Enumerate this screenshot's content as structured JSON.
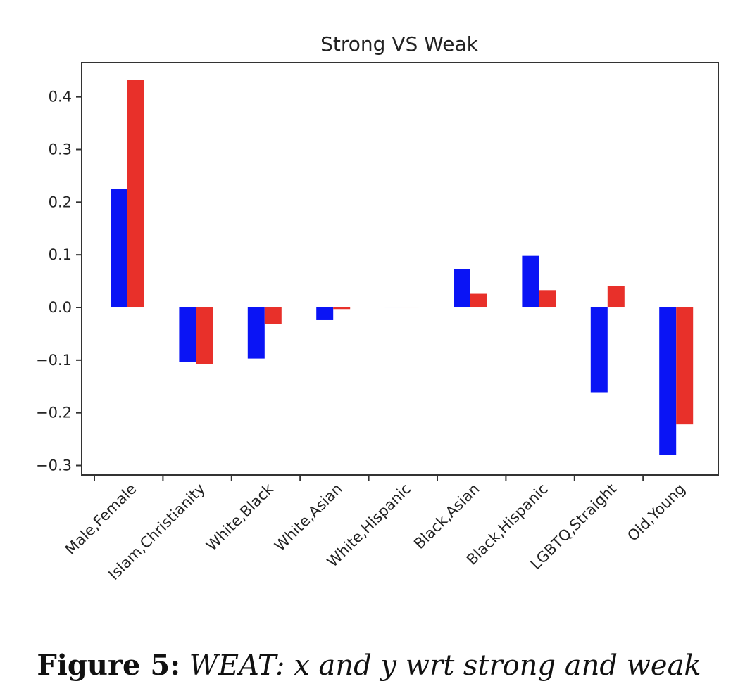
{
  "chart_data": {
    "type": "bar",
    "title": "Strong VS Weak",
    "xlabel": "",
    "ylabel": "",
    "categories": [
      "Male,Female",
      "Islam,Christianity",
      "White,Black",
      "White,Asian",
      "White,Hispanic",
      "Black,Asian",
      "Black,Hispanic",
      "LGBTQ,Straight",
      "Old,Young"
    ],
    "series": [
      {
        "color": "#0a14f5",
        "values": [
          0.225,
          -0.103,
          -0.097,
          -0.024,
          0.0,
          0.073,
          0.098,
          -0.161,
          -0.28
        ]
      },
      {
        "color": "#e8302a",
        "values": [
          0.432,
          -0.107,
          -0.032,
          -0.003,
          0.0,
          0.026,
          0.033,
          0.041,
          -0.222
        ]
      }
    ],
    "ylim": [
      -0.318,
      0.465
    ],
    "yticks": [
      -0.3,
      -0.2,
      -0.1,
      0.0,
      0.1,
      0.2,
      0.3,
      0.4
    ],
    "ytick_labels": [
      "−0.3",
      "−0.2",
      "−0.1",
      "0.0",
      "0.1",
      "0.2",
      "0.3",
      "0.4"
    ],
    "grid": false,
    "legend": "none"
  },
  "caption": {
    "label": "Figure 5:",
    "text": "WEAT: x and y wrt strong and weak"
  }
}
